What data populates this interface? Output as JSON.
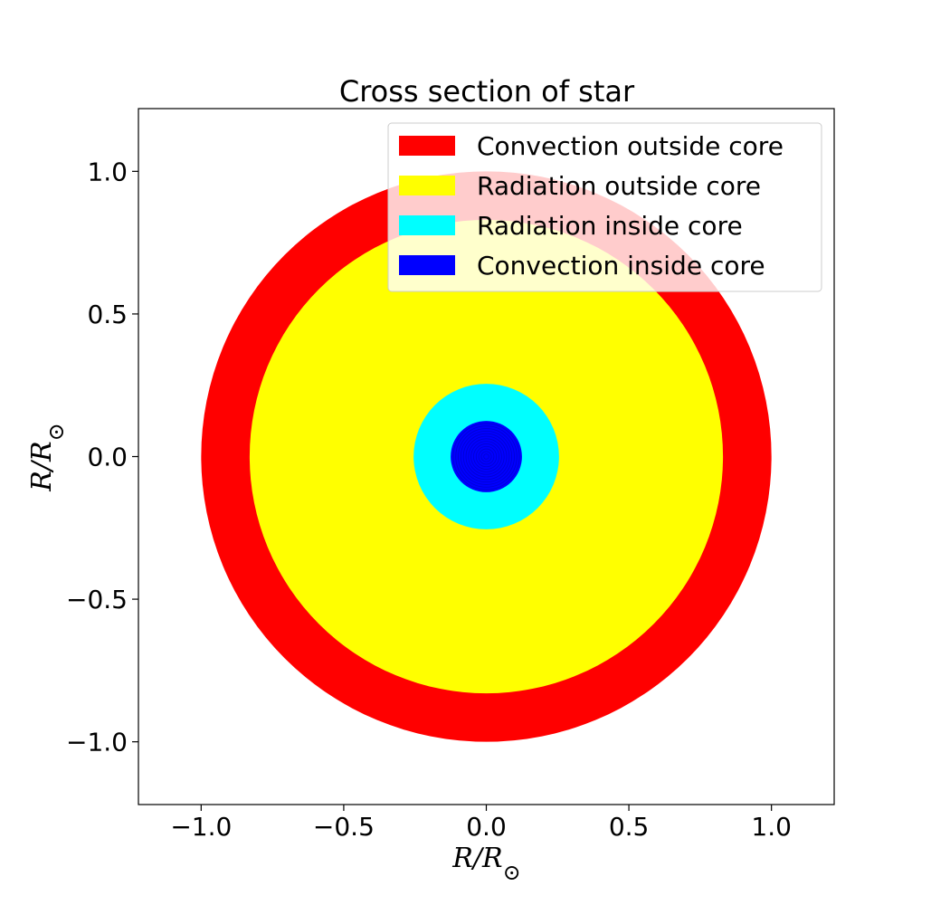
{
  "chart_data": {
    "type": "area",
    "title": "Cross section of star",
    "xlabel": "R/R_sun",
    "ylabel": "R/R_sun",
    "xlim": [
      -1.22,
      1.22
    ],
    "ylim": [
      -1.22,
      1.22
    ],
    "x_ticks": [
      -1.0,
      -0.5,
      0.0,
      0.5,
      1.0
    ],
    "y_ticks": [
      -1.0,
      -0.5,
      0.0,
      0.5,
      1.0
    ],
    "x_tick_labels": [
      "−1.0",
      "−0.5",
      "0.0",
      "0.5",
      "1.0"
    ],
    "y_tick_labels": [
      "−1.0",
      "−0.5",
      "0.0",
      "0.5",
      "1.0"
    ],
    "grid": false,
    "legend_position": "top-right",
    "regions": [
      {
        "name": "Convection outside core",
        "color": "#ff0000",
        "r_outer": 1.0,
        "r_inner": 0.83
      },
      {
        "name": "Radiation outside core",
        "color": "#ffff00",
        "r_outer": 0.83,
        "r_inner": 0.255
      },
      {
        "name": "Radiation inside core",
        "color": "#00ffff",
        "r_outer": 0.255,
        "r_inner": 0.125
      },
      {
        "name": "Convection inside core",
        "color": "#0000ff",
        "r_outer": 0.125,
        "r_inner": 0.0
      }
    ]
  }
}
